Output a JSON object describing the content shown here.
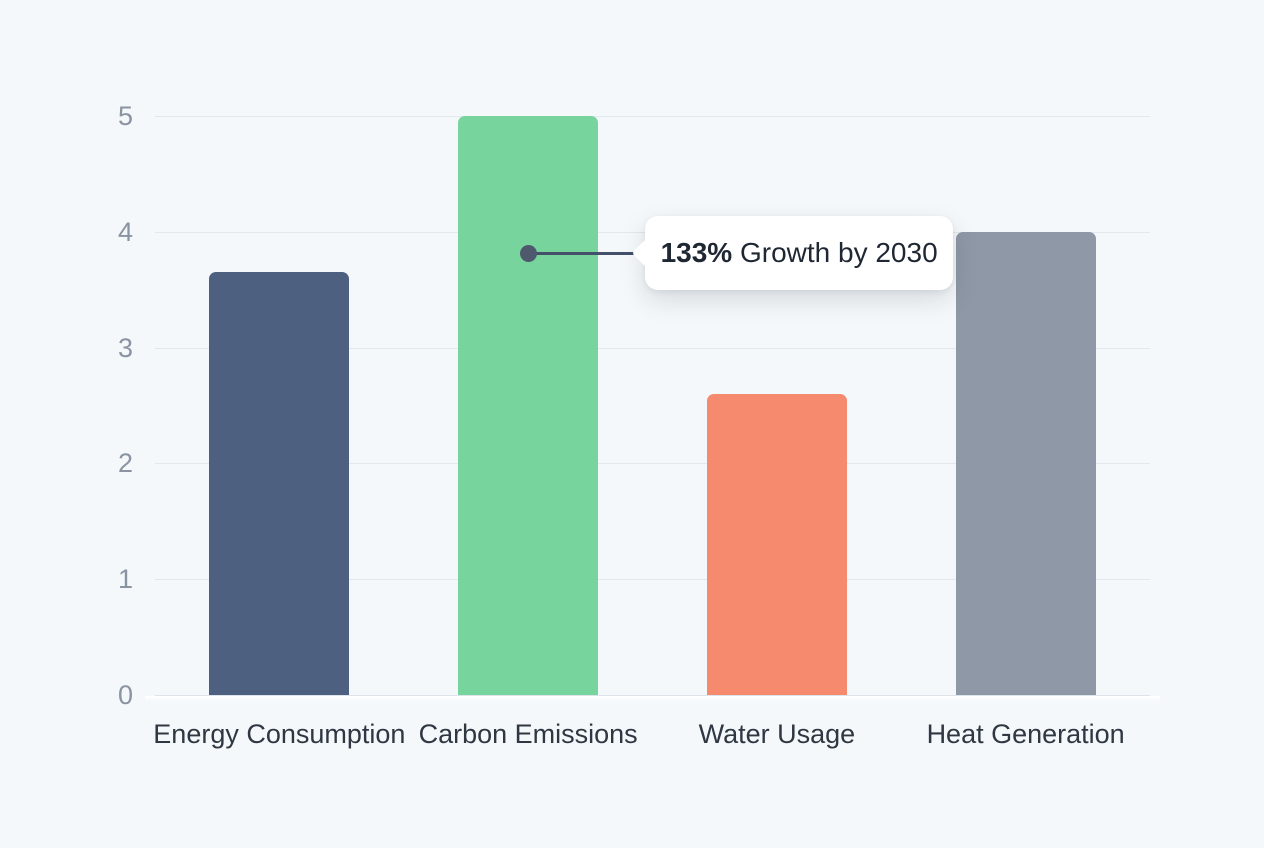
{
  "background_color": "#f4f8fa",
  "chart_data": {
    "type": "bar",
    "title": "",
    "xlabel": "",
    "ylabel": "",
    "categories": [
      "Energy Consumption",
      "Carbon Emissions",
      "Water Usage",
      "Heat Generation"
    ],
    "values": [
      3.65,
      5,
      2.6,
      4
    ],
    "bar_colors": [
      "#4e6080",
      "#77d49d",
      "#f68a6e",
      "#8f98a6"
    ],
    "ylim": [
      0,
      5
    ],
    "yticks": [
      "0",
      "1",
      "2",
      "3",
      "4",
      "5"
    ],
    "grid": true,
    "legend_position": "none",
    "annotation": {
      "target_category": "Carbon Emissions",
      "text_bold": "133%",
      "text_rest": " Growth by 2030",
      "full_text": "133% Growth by 2030"
    }
  },
  "colors": {
    "grid": "#e3e8ee",
    "tick_label": "#8a93a1",
    "category_label": "#2f3743",
    "tooltip_bg": "#ffffff",
    "tooltip_text": "#1f2733",
    "connector": "#44506a",
    "dot": "#4f596e"
  }
}
